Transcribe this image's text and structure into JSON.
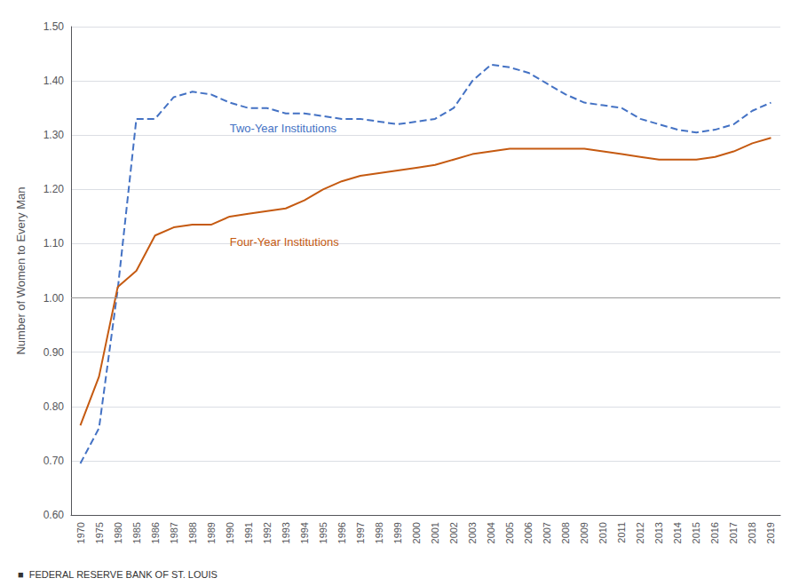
{
  "chart_data": {
    "type": "line",
    "ylabel": "Number of Women to Every Man",
    "categories": [
      "1970",
      "1975",
      "1980",
      "1985",
      "1986",
      "1987",
      "1988",
      "1989",
      "1990",
      "1991",
      "1992",
      "1993",
      "1994",
      "1995",
      "1996",
      "1997",
      "1998",
      "1999",
      "2000",
      "2001",
      "2002",
      "2003",
      "2004",
      "2005",
      "2006",
      "2007",
      "2008",
      "2009",
      "2010",
      "2011",
      "2012",
      "2013",
      "2014",
      "2015",
      "2016",
      "2017",
      "2018",
      "2019"
    ],
    "series": [
      {
        "name": "Two-Year Institutions",
        "color": "#4472C4",
        "line_style": "dashed",
        "values": [
          0.695,
          0.76,
          1.015,
          1.33,
          1.33,
          1.37,
          1.38,
          1.375,
          1.36,
          1.35,
          1.35,
          1.34,
          1.34,
          1.335,
          1.33,
          1.33,
          1.325,
          1.32,
          1.325,
          1.33,
          1.35,
          1.4,
          1.43,
          1.425,
          1.415,
          1.395,
          1.375,
          1.36,
          1.355,
          1.35,
          1.33,
          1.32,
          1.31,
          1.305,
          1.31,
          1.32,
          1.345,
          1.36
        ]
      },
      {
        "name": "Four-Year Institutions",
        "color": "#C55A11",
        "line_style": "solid",
        "values": [
          0.765,
          0.855,
          1.02,
          1.05,
          1.115,
          1.13,
          1.135,
          1.135,
          1.15,
          1.155,
          1.16,
          1.165,
          1.18,
          1.2,
          1.215,
          1.225,
          1.23,
          1.235,
          1.24,
          1.245,
          1.255,
          1.265,
          1.27,
          1.275,
          1.275,
          1.275,
          1.275,
          1.275,
          1.27,
          1.265,
          1.26,
          1.255,
          1.255,
          1.255,
          1.26,
          1.27,
          1.285,
          1.295
        ]
      }
    ],
    "reference_line": {
      "y": 1.0,
      "color": "#999999"
    },
    "ylim": [
      0.6,
      1.5
    ],
    "yticks": [
      {
        "value": 0.6,
        "label": "0.60"
      },
      {
        "value": 0.7,
        "label": "0.70"
      },
      {
        "value": 0.8,
        "label": "0.80"
      },
      {
        "value": 0.9,
        "label": "0.90"
      },
      {
        "value": 1.0,
        "label": "1.00"
      },
      {
        "value": 1.1,
        "label": "1.10"
      },
      {
        "value": 1.2,
        "label": "1.20"
      },
      {
        "value": 1.3,
        "label": "1.30"
      },
      {
        "value": 1.4,
        "label": "1.40"
      },
      {
        "value": 1.5,
        "label": "1.50"
      }
    ],
    "grid": true,
    "footnote": "■  FEDERAL RESERVE BANK OF ST. LOUIS"
  }
}
